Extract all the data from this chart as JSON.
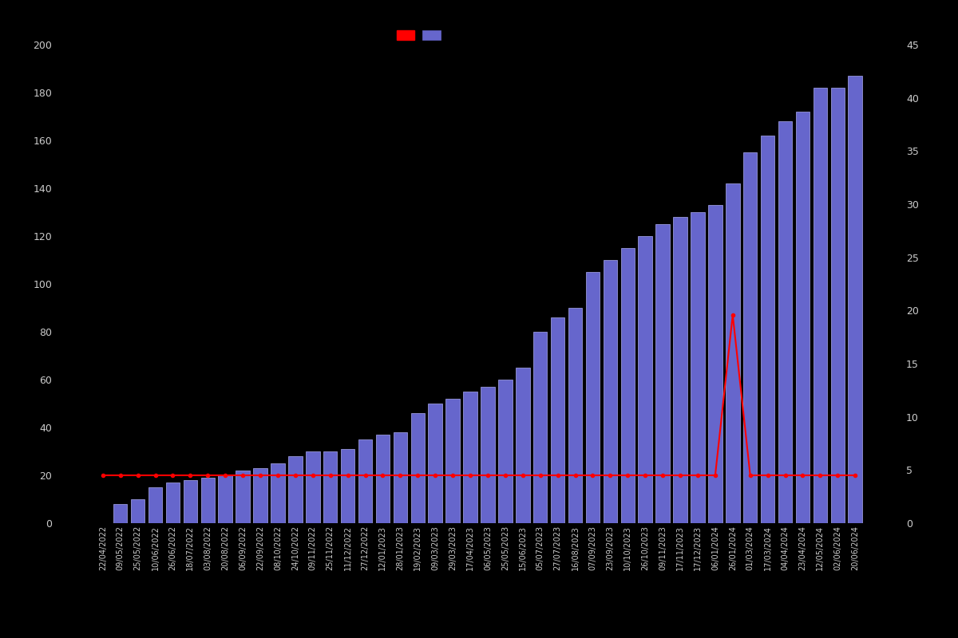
{
  "dates": [
    "22/04/2022",
    "09/05/2022",
    "25/05/2022",
    "10/06/2022",
    "26/06/2022",
    "18/07/2022",
    "03/08/2022",
    "20/08/2022",
    "06/09/2022",
    "22/09/2022",
    "08/10/2022",
    "24/10/2022",
    "09/11/2022",
    "25/11/2022",
    "11/12/2022",
    "27/12/2022",
    "12/01/2023",
    "28/01/2023",
    "19/02/2023",
    "09/03/2023",
    "29/03/2023",
    "17/04/2023",
    "06/05/2023",
    "25/05/2023",
    "15/06/2023",
    "05/07/2023",
    "27/07/2023",
    "16/08/2023",
    "07/09/2023",
    "23/09/2023",
    "10/10/2023",
    "26/10/2023",
    "09/11/2023",
    "17/11/2023",
    "17/12/2023",
    "06/01/2024",
    "26/01/2024",
    "01/03/2024",
    "17/03/2024",
    "04/04/2024",
    "23/04/2024",
    "12/05/2024",
    "02/06/2024",
    "20/06/2024"
  ],
  "bar_values": [
    0,
    8,
    10,
    15,
    17,
    18,
    19,
    20,
    22,
    23,
    25,
    28,
    30,
    30,
    31,
    35,
    37,
    38,
    46,
    50,
    52,
    55,
    57,
    60,
    65,
    80,
    86,
    90,
    105,
    110,
    115,
    120,
    125,
    128,
    130,
    133,
    142,
    155,
    162,
    168,
    172,
    182,
    182,
    187
  ],
  "line_values": [
    20,
    20,
    20,
    20,
    20,
    20,
    20,
    20,
    20,
    20,
    20,
    20,
    20,
    20,
    20,
    20,
    20,
    20,
    20,
    20,
    20,
    20,
    20,
    20,
    20,
    20,
    20,
    20,
    20,
    20,
    20,
    20,
    20,
    20,
    20,
    20,
    87,
    20,
    20,
    20,
    20,
    20,
    20,
    20
  ],
  "bar_color": "#6666cc",
  "bar_edge_color": "#aaaaee",
  "line_color": "#ff0000",
  "marker_color": "#ff0000",
  "background_color": "#000000",
  "text_color": "#cccccc",
  "ylim_left": [
    0,
    200
  ],
  "ylim_right": [
    0,
    45
  ],
  "yticks_left": [
    0,
    20,
    40,
    60,
    80,
    100,
    120,
    140,
    160,
    180,
    200
  ],
  "yticks_right": [
    0,
    5,
    10,
    15,
    20,
    25,
    30,
    35,
    40,
    45
  ]
}
